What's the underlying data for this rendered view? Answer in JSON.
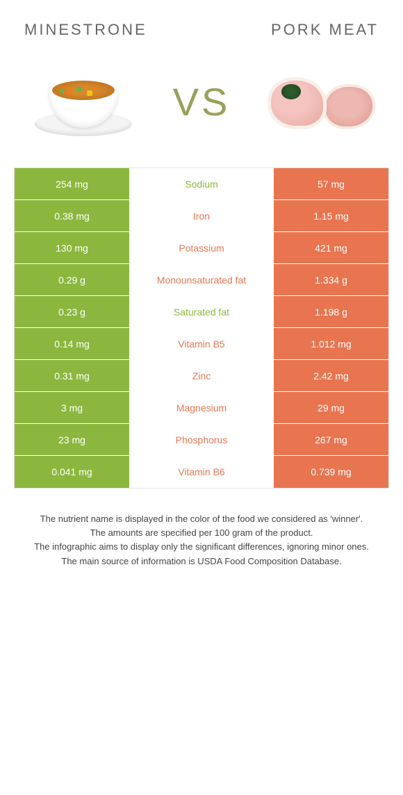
{
  "header": {
    "left_title": "Minestrone",
    "right_title": "Pork meat"
  },
  "vs_label": "VS",
  "colors": {
    "left": "#8bb73e",
    "right": "#e8754f",
    "text_body": "#444444",
    "header_text": "#666666"
  },
  "typography": {
    "header_fontsize": 22,
    "vs_fontsize": 56,
    "cell_fontsize": 14,
    "footnote_fontsize": 13
  },
  "table": {
    "rows": [
      {
        "nutrient": "Sodium",
        "left": "254 mg",
        "right": "57 mg",
        "winner": "left"
      },
      {
        "nutrient": "Iron",
        "left": "0.38 mg",
        "right": "1.15 mg",
        "winner": "right"
      },
      {
        "nutrient": "Potassium",
        "left": "130 mg",
        "right": "421 mg",
        "winner": "right"
      },
      {
        "nutrient": "Monounsaturated fat",
        "left": "0.29 g",
        "right": "1.334 g",
        "winner": "right"
      },
      {
        "nutrient": "Saturated fat",
        "left": "0.23 g",
        "right": "1.198 g",
        "winner": "left"
      },
      {
        "nutrient": "Vitamin B5",
        "left": "0.14 mg",
        "right": "1.012 mg",
        "winner": "right"
      },
      {
        "nutrient": "Zinc",
        "left": "0.31 mg",
        "right": "2.42 mg",
        "winner": "right"
      },
      {
        "nutrient": "Magnesium",
        "left": "3 mg",
        "right": "29 mg",
        "winner": "right"
      },
      {
        "nutrient": "Phosphorus",
        "left": "23 mg",
        "right": "267 mg",
        "winner": "right"
      },
      {
        "nutrient": "Vitamin B6",
        "left": "0.041 mg",
        "right": "0.739 mg",
        "winner": "right"
      }
    ]
  },
  "footnotes": {
    "line1": "The nutrient name is displayed in the color of the food we considered as 'winner'.",
    "line2": "The amounts are specified per 100 gram of the product.",
    "line3": "The infographic aims to display only the significant differences, ignoring minor ones.",
    "line4": "The main source of information is USDA Food Composition Database."
  }
}
